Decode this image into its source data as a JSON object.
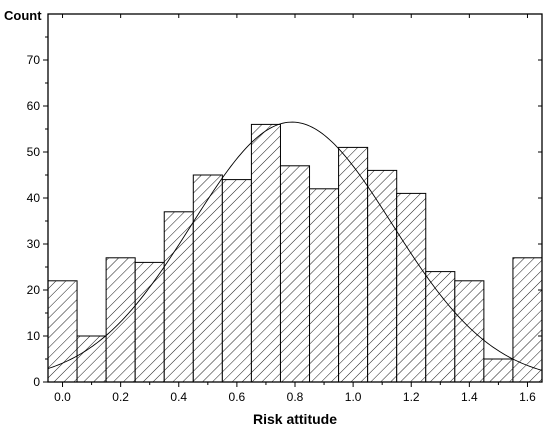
{
  "chart_data": {
    "type": "bar",
    "subtype": "histogram",
    "xlabel": "Risk attitude",
    "ylabel": "Count",
    "xlim": [
      -0.05,
      1.65
    ],
    "ylim": [
      0,
      80
    ],
    "bin_width": 0.1,
    "bin_starts": [
      -0.05,
      0.05,
      0.15,
      0.25,
      0.35,
      0.45,
      0.55,
      0.65,
      0.75,
      0.85,
      0.95,
      1.05,
      1.15,
      1.25,
      1.35,
      1.45,
      1.55
    ],
    "values": [
      22,
      10,
      27,
      26,
      37,
      45,
      44,
      56,
      47,
      42,
      51,
      46,
      41,
      24,
      22,
      5,
      27
    ],
    "x_ticks": [
      "0.0",
      "0.2",
      "0.4",
      "0.6",
      "0.8",
      "1.0",
      "1.2",
      "1.4",
      "1.6"
    ],
    "x_tick_values": [
      0.0,
      0.2,
      0.4,
      0.6,
      0.8,
      1.0,
      1.2,
      1.4,
      1.6
    ],
    "y_ticks": [
      "0",
      "10",
      "20",
      "30",
      "40",
      "50",
      "60",
      "70"
    ],
    "y_tick_values": [
      0,
      10,
      20,
      30,
      40,
      50,
      60,
      70
    ],
    "fit_curve": {
      "kind": "normal",
      "mean": 0.79,
      "peak": 56.5,
      "sd": 0.345
    },
    "bar_fill": "hatched",
    "grid": false,
    "legend": "none"
  }
}
